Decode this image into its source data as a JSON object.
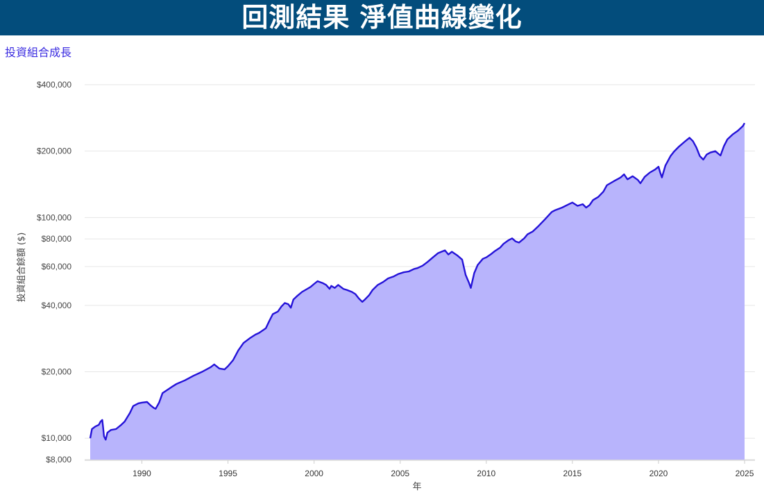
{
  "header": {
    "title": "回測結果 淨值曲線變化"
  },
  "chart_data": {
    "type": "area",
    "subtitle": "投資組合成長",
    "xlabel": "年",
    "ylabel": "投資組合餘額 ($)",
    "y_scale": "log",
    "ylim": [
      8000,
      400000
    ],
    "xlim": [
      1987.0,
      2025.2
    ],
    "y_ticks": [
      8000,
      10000,
      20000,
      40000,
      60000,
      80000,
      100000,
      200000,
      400000
    ],
    "y_tick_labels": [
      "$8,000",
      "$10,000",
      "$20,000",
      "$40,000",
      "$60,000",
      "$80,000",
      "$100,000",
      "$200,000",
      "$400,000"
    ],
    "x_ticks": [
      1990,
      1995,
      2000,
      2005,
      2010,
      2015,
      2020,
      2025
    ],
    "x_tick_labels": [
      "1990",
      "1995",
      "2000",
      "2005",
      "2010",
      "2015",
      "2020",
      "2025"
    ],
    "grid": true,
    "legend": "none",
    "colors": {
      "line": "#2412d8",
      "fill": "#b8b4fc",
      "grid": "#e6e6e6"
    },
    "series": [
      {
        "x": [
          1987.0,
          1987.1,
          1987.3,
          1987.5,
          1987.6,
          1987.7,
          1987.75,
          1987.8,
          1987.9,
          1988.0,
          1988.2,
          1988.5,
          1988.8,
          1989.0,
          1989.3,
          1989.5,
          1989.8,
          1990.0,
          1990.3,
          1990.5,
          1990.7,
          1990.8,
          1991.0,
          1991.2,
          1991.5,
          1991.8,
          1992.0,
          1992.5,
          1993.0,
          1993.5,
          1994.0,
          1994.2,
          1994.5,
          1994.8,
          1995.0,
          1995.3,
          1995.6,
          1995.9,
          1996.3,
          1996.6,
          1996.8,
          1997.2,
          1997.4,
          1997.6,
          1997.9,
          1998.1,
          1998.3,
          1998.5,
          1998.65,
          1998.8,
          1999.0,
          1999.3,
          1999.6,
          1999.8,
          2000.0,
          2000.2,
          2000.5,
          2000.7,
          2000.9,
          2001.0,
          2001.2,
          2001.4,
          2001.7,
          2001.9,
          2002.2,
          2002.4,
          2002.6,
          2002.8,
          2002.95,
          2003.2,
          2003.4,
          2003.7,
          2004.0,
          2004.3,
          2004.6,
          2004.9,
          2005.2,
          2005.5,
          2005.8,
          2006.0,
          2006.3,
          2006.6,
          2006.9,
          2007.2,
          2007.6,
          2007.8,
          2008.0,
          2008.3,
          2008.6,
          2008.8,
          2009.0,
          2009.1,
          2009.3,
          2009.5,
          2009.8,
          2010.0,
          2010.3,
          2010.5,
          2010.8,
          2011.0,
          2011.3,
          2011.5,
          2011.7,
          2011.9,
          2012.2,
          2012.4,
          2012.7,
          2013.0,
          2013.4,
          2013.8,
          2014.0,
          2014.4,
          2014.8,
          2015.0,
          2015.3,
          2015.6,
          2015.8,
          2016.0,
          2016.2,
          2016.5,
          2016.8,
          2017.0,
          2017.4,
          2017.8,
          2018.0,
          2018.2,
          2018.5,
          2018.8,
          2018.95,
          2019.2,
          2019.5,
          2019.8,
          2020.0,
          2020.1,
          2020.2,
          2020.4,
          2020.7,
          2020.9,
          2021.2,
          2021.5,
          2021.8,
          2022.0,
          2022.2,
          2022.4,
          2022.6,
          2022.8,
          2023.0,
          2023.3,
          2023.6,
          2023.8,
          2024.0,
          2024.3,
          2024.6,
          2024.9,
          2025.0
        ],
        "values": [
          10000,
          11000,
          11300,
          11500,
          11900,
          12100,
          11200,
          10200,
          9850,
          10600,
          10900,
          11000,
          11500,
          11900,
          13000,
          14000,
          14400,
          14500,
          14600,
          14100,
          13700,
          13600,
          14500,
          16000,
          16600,
          17200,
          17600,
          18300,
          19200,
          20000,
          21000,
          21600,
          20700,
          20500,
          21200,
          22600,
          25000,
          27000,
          28500,
          29500,
          30000,
          31500,
          34000,
          36500,
          37500,
          39500,
          41000,
          40500,
          39000,
          42500,
          44000,
          46000,
          47500,
          48500,
          50000,
          51500,
          50500,
          49500,
          47500,
          49000,
          48000,
          49500,
          47500,
          47000,
          46000,
          45000,
          43000,
          41500,
          42500,
          44500,
          47000,
          49500,
          51000,
          53000,
          54000,
          55500,
          56500,
          57000,
          58500,
          59000,
          60500,
          63000,
          66000,
          69000,
          71000,
          68000,
          70000,
          67500,
          64500,
          55000,
          50500,
          48000,
          56000,
          61000,
          65000,
          66000,
          68500,
          70500,
          73000,
          76000,
          79000,
          80500,
          78000,
          77000,
          80500,
          84000,
          86500,
          91000,
          98000,
          106000,
          108000,
          111000,
          115000,
          117000,
          113000,
          115000,
          111000,
          114000,
          120000,
          124000,
          131000,
          140000,
          146000,
          152000,
          157000,
          149000,
          154000,
          148000,
          143000,
          153000,
          160000,
          165000,
          170000,
          160000,
          152000,
          172000,
          190000,
          199000,
          210000,
          220000,
          230000,
          222000,
          208000,
          190000,
          183000,
          193000,
          197000,
          200000,
          191000,
          211000,
          226000,
          238000,
          247000,
          260000,
          268000
        ]
      }
    ]
  }
}
